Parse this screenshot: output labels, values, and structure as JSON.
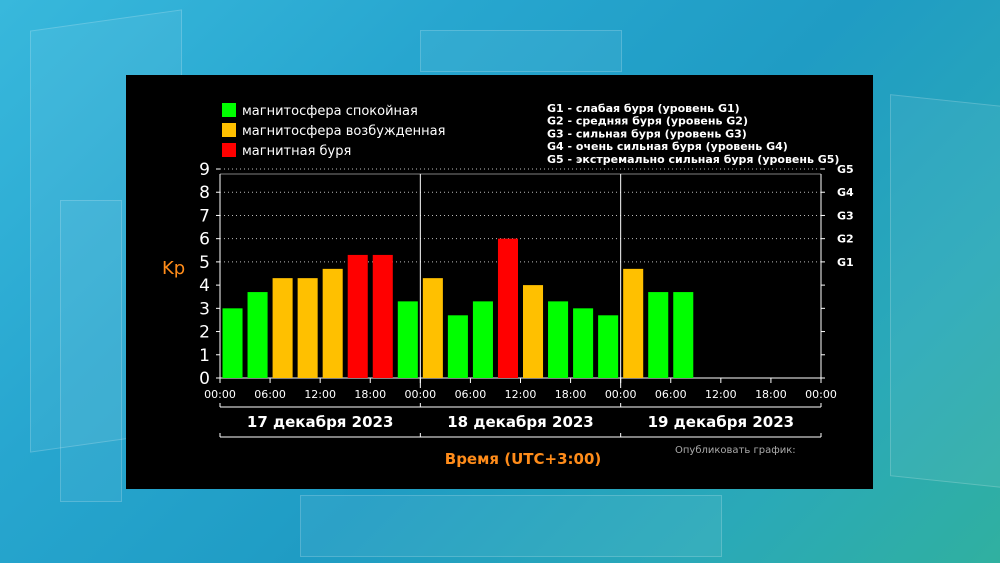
{
  "colors": {
    "quiet": "#00ff00",
    "active": "#ffc000",
    "storm": "#ff0000",
    "accent": "#ff8c1a"
  },
  "legend": [
    {
      "label": "магнитосфера спокойная",
      "color": "#00ff00"
    },
    {
      "label": "магнитосфера возбужденная",
      "color": "#ffc000"
    },
    {
      "label": "магнитная буря",
      "color": "#ff0000"
    }
  ],
  "storm_levels": [
    "G1 - слабая буря (уровень G1)",
    "G2 - средняя буря (уровень G2)",
    "G3 - сильная буря (уровень G3)",
    "G4 - очень сильная буря (уровень G4)",
    "G5 - экстремально сильная буря (уровень G5)"
  ],
  "publish_text": "Опубликовать график:",
  "chart_data": {
    "type": "bar",
    "title": "",
    "ylabel": "Kp",
    "xlabel": "Время (UTC+3:00)",
    "ylim": [
      0,
      9
    ],
    "y_ticks": [
      "0",
      "1",
      "2",
      "3",
      "4",
      "5",
      "6",
      "7",
      "8",
      "9"
    ],
    "g_levels": [
      {
        "label": "G1",
        "value": 5
      },
      {
        "label": "G2",
        "value": 6
      },
      {
        "label": "G3",
        "value": 7
      },
      {
        "label": "G4",
        "value": 8
      },
      {
        "label": "G5",
        "value": 9
      }
    ],
    "x_ticks": [
      "00:00",
      "06:00",
      "12:00",
      "18:00",
      "00:00",
      "06:00",
      "12:00",
      "18:00",
      "00:00",
      "06:00",
      "12:00",
      "18:00",
      "00:00"
    ],
    "days": [
      "17 декабря 2023",
      "18 декабря 2023",
      "19 декабря 2023"
    ],
    "slots_per_day": 8,
    "values": [
      3.0,
      3.7,
      4.3,
      4.3,
      4.7,
      5.3,
      5.3,
      3.3,
      4.3,
      2.7,
      3.3,
      6.0,
      4.0,
      3.3,
      3.0,
      2.7,
      4.7,
      3.7,
      3.7
    ],
    "levels": [
      "quiet",
      "quiet",
      "active",
      "active",
      "active",
      "storm",
      "storm",
      "quiet",
      "active",
      "quiet",
      "quiet",
      "storm",
      "active",
      "quiet",
      "quiet",
      "quiet",
      "active",
      "quiet",
      "quiet"
    ]
  }
}
